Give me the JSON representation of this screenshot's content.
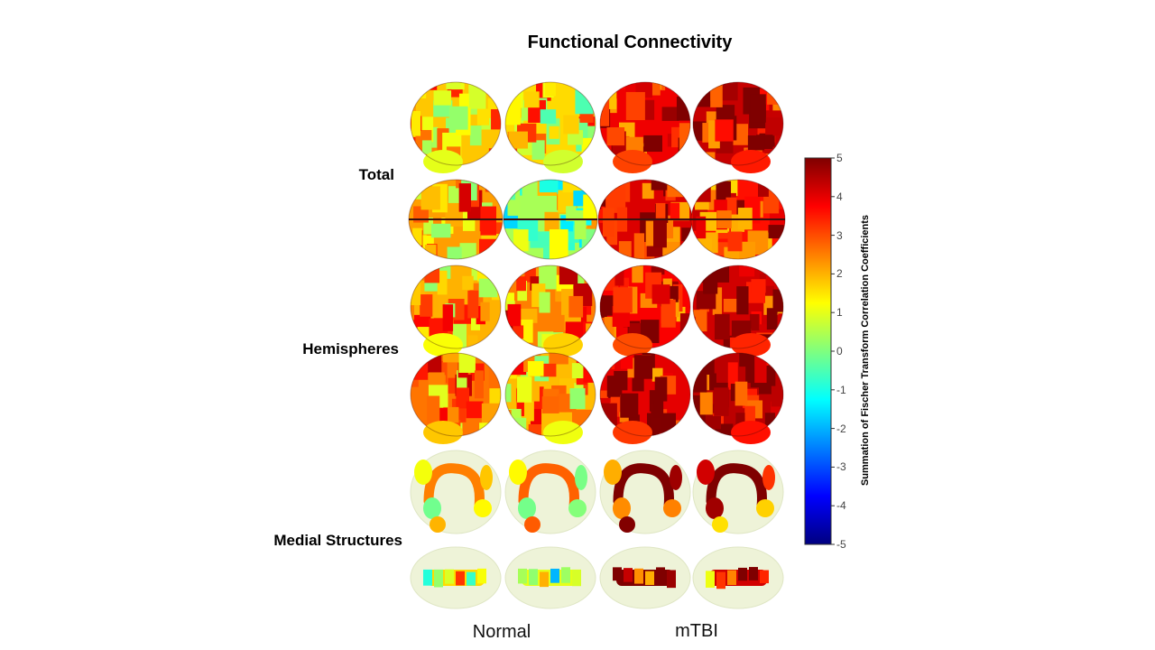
{
  "figure": {
    "title": "Functional Connectivity",
    "row_groups": [
      {
        "label": "Total"
      },
      {
        "label": "Hemispheres"
      },
      {
        "label": "Medial Structures"
      }
    ],
    "column_groups": [
      {
        "label": "Normal"
      },
      {
        "label": "mTBI"
      }
    ]
  },
  "colorbar": {
    "label": "Summation of Fischer Transform Correlation Coefficients",
    "ticks": [
      "5",
      "4",
      "3",
      "2",
      "1",
      "0",
      "-1",
      "-2",
      "-3",
      "-4",
      "-5"
    ],
    "min": -5,
    "max": 5,
    "colormap": "jet",
    "colors": [
      "#00007f",
      "#0000ff",
      "#007fff",
      "#00ffff",
      "#7fff7f",
      "#ffff00",
      "#ff7f00",
      "#ff0000",
      "#7f0000"
    ]
  },
  "panels": {
    "rows": 6,
    "cols": 4,
    "views": [
      "lateral",
      "axial",
      "lateral",
      "lateral",
      "medial-glass",
      "axial-glass"
    ],
    "mean_values": [
      [
        1.8,
        1.6,
        3.9,
        4.3
      ],
      [
        2.2,
        0.4,
        4.1,
        3.6
      ],
      [
        2.0,
        2.5,
        3.8,
        4.2
      ],
      [
        2.6,
        1.9,
        4.0,
        4.4
      ],
      [
        1.0,
        1.3,
        3.7,
        3.5
      ],
      [
        0.8,
        0.2,
        4.2,
        3.4
      ]
    ]
  }
}
